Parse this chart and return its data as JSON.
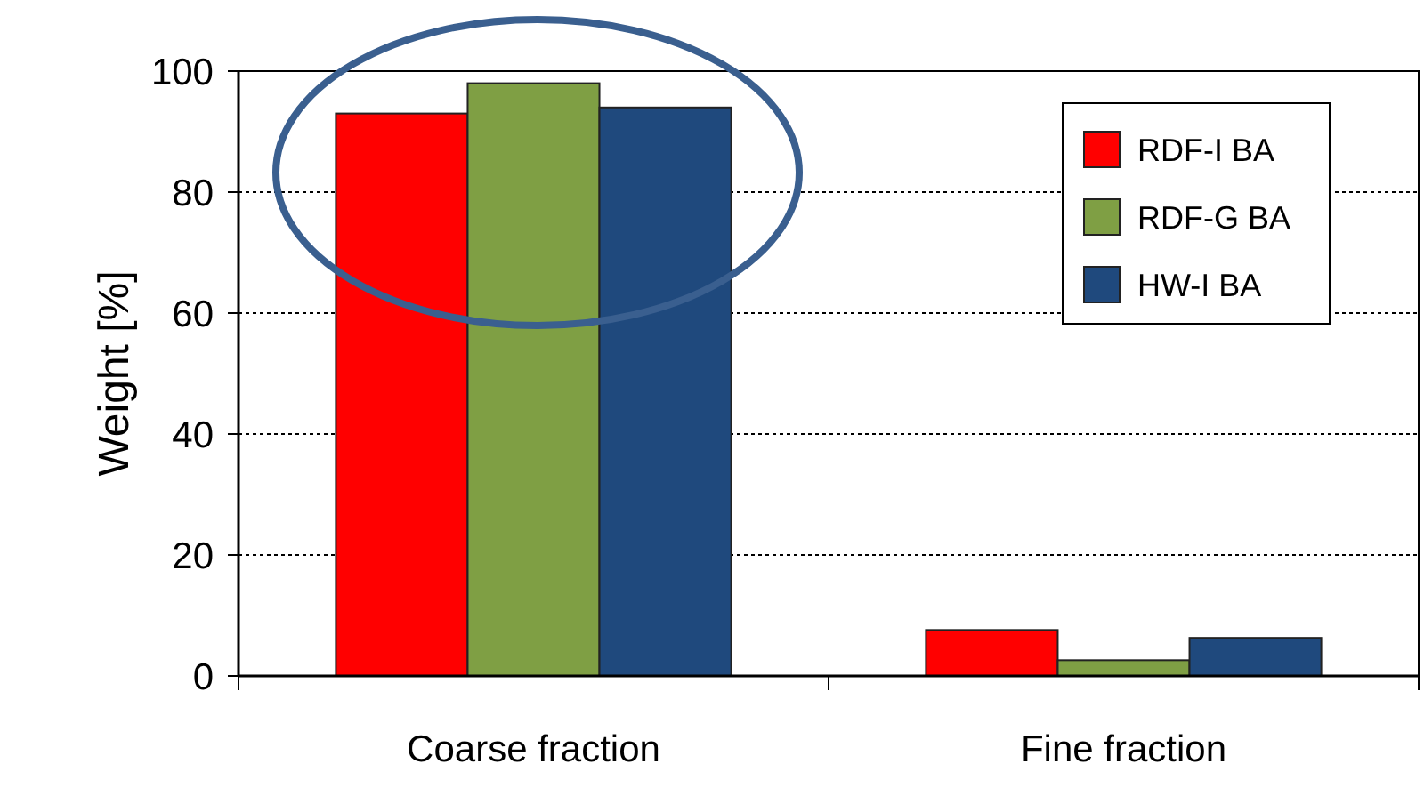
{
  "chart_data": {
    "type": "bar",
    "ylabel": "Weight [%]",
    "categories": [
      "Coarse fraction",
      "Fine fraction"
    ],
    "series": [
      {
        "name": "RDF-I BA",
        "color": "#ff0000",
        "values": [
          93,
          7.6
        ]
      },
      {
        "name": "RDF-G BA",
        "color": "#7f9f44",
        "values": [
          98,
          2.6
        ]
      },
      {
        "name": "HW-I BA",
        "color": "#1f497d",
        "values": [
          94,
          6.3
        ]
      }
    ],
    "ylim": [
      0,
      100
    ],
    "yticks": [
      0,
      20,
      40,
      60,
      80,
      100
    ],
    "grid": "y",
    "legend": "top right"
  }
}
